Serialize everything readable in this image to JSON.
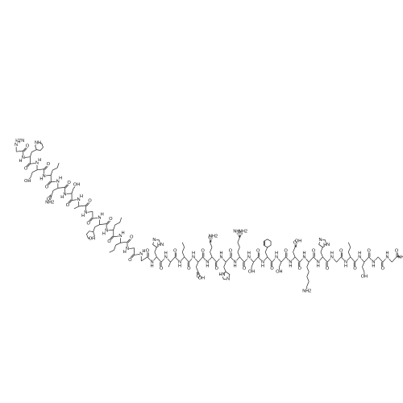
{
  "molecule": {
    "backbone": {
      "amide_nitrogen": "N",
      "amide_hydrogen": "H",
      "carbonyl_oxygen": "O"
    },
    "n_terminus": "H2N",
    "c_terminus": "NH2",
    "side_chain_labels": [
      "NH",
      "OH",
      "O",
      "NH2",
      "OH",
      "OH",
      "N",
      "HN",
      "O",
      "OH",
      "O",
      "NH2",
      "N",
      "HN",
      "HN",
      "NH2",
      "NH",
      "OH",
      "OH",
      "O",
      "OH",
      "NH2",
      "N",
      "HN",
      "OH"
    ]
  }
}
